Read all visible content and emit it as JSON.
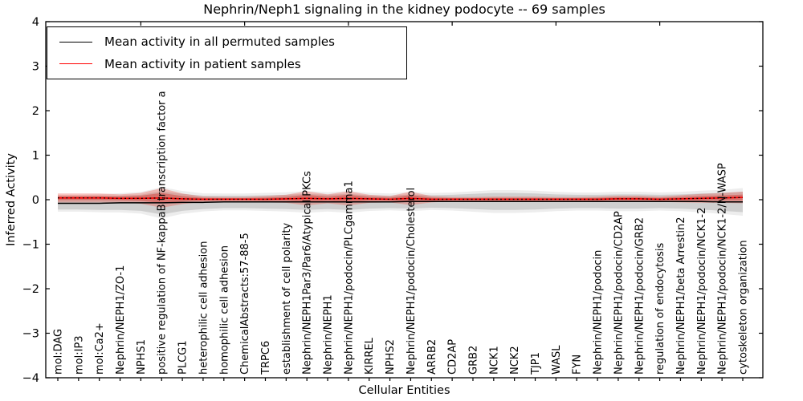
{
  "chart_data": {
    "type": "line",
    "title": "Nephrin/Neph1 signaling in the kidney podocyte -- 69 samples",
    "xlabel": "Cellular Entities",
    "ylabel": "Inferred Activity",
    "ylim": [
      -4,
      4
    ],
    "grid": false,
    "legend_position": "upper left",
    "yticks": [
      {
        "value": 4,
        "label": "4"
      },
      {
        "value": 3,
        "label": "3"
      },
      {
        "value": 2,
        "label": "2"
      },
      {
        "value": 1,
        "label": "1"
      },
      {
        "value": 0,
        "label": "0"
      },
      {
        "value": -1,
        "label": "−1"
      },
      {
        "value": -2,
        "label": "−2"
      },
      {
        "value": -3,
        "label": "−3"
      },
      {
        "value": -4,
        "label": "−4"
      }
    ],
    "categories": [
      "mol:DAG",
      "mol:IP3",
      "mol:Ca2+",
      "Nephrin/NEPH1/ZO-1",
      "NPHS1",
      "positive regulation of NF-kappaB transcription factor a",
      "PLCG1",
      "heterophilic cell adhesion",
      "homophilic cell adhesion",
      "ChemicalAbstracts:57-88-5",
      "TRPC6",
      "establishment of cell polarity",
      "Nephrin/NEPH1Par3/Par6/Atypical PKCs",
      "Nephrin/NEPH1",
      "Nephrin/NEPH1/podocin/PLCgamma1",
      "KIRREL",
      "NPHS2",
      "Nephrin/NEPH1/podocin/Cholesterol",
      "ARRB2",
      "CD2AP",
      "GRB2",
      "NCK1",
      "NCK2",
      "TJP1",
      "WASL",
      "FYN",
      "Nephrin/NEPH1/podocin",
      "Nephrin/NEPH1/podocin/CD2AP",
      "Nephrin/NEPH1/podocin/GRB2",
      "regulation of endocytosis",
      "Nephrin/NEPH1/beta Arrestin2",
      "Nephrin/NEPH1/podocin/NCK1-2",
      "Nephrin/NEPH1/podocin/NCK1-2/N-WASP",
      "cytoskeleton organization"
    ],
    "series": [
      {
        "name": "Mean activity in all permuted samples",
        "color": "#000000",
        "band_color": "rgba(128,128,128,0.28)",
        "band_color_soft": "rgba(128,128,128,0.14)",
        "values": [
          -0.08,
          -0.08,
          -0.08,
          -0.07,
          -0.07,
          -0.07,
          -0.06,
          -0.06,
          -0.05,
          -0.05,
          -0.05,
          -0.05,
          -0.05,
          -0.05,
          -0.05,
          -0.05,
          -0.05,
          -0.04,
          -0.04,
          -0.04,
          -0.04,
          -0.04,
          -0.04,
          -0.04,
          -0.04,
          -0.04,
          -0.04,
          -0.04,
          -0.04,
          -0.04,
          -0.04,
          -0.04,
          -0.05,
          -0.05
        ],
        "std": [
          0.14,
          0.14,
          0.15,
          0.16,
          0.18,
          0.26,
          0.19,
          0.15,
          0.14,
          0.14,
          0.15,
          0.16,
          0.18,
          0.16,
          0.18,
          0.15,
          0.14,
          0.16,
          0.14,
          0.15,
          0.17,
          0.19,
          0.19,
          0.18,
          0.16,
          0.15,
          0.15,
          0.16,
          0.16,
          0.15,
          0.16,
          0.18,
          0.2,
          0.23
        ]
      },
      {
        "name": "Mean activity in patient samples",
        "color": "#ff0000",
        "band_color": "rgba(232,70,60,0.32)",
        "band_color_core": "rgba(211,40,35,0.40)",
        "dotted_overlay_color": "#000000",
        "values": [
          0.04,
          0.04,
          0.04,
          0.03,
          0.03,
          0.04,
          0.02,
          0.01,
          0.01,
          0.01,
          0.01,
          0.02,
          0.03,
          0.02,
          0.03,
          0.02,
          0.01,
          0.03,
          0.01,
          0.01,
          0.01,
          0.01,
          0.01,
          0.01,
          0.01,
          0.01,
          0.01,
          0.02,
          0.02,
          0.01,
          0.02,
          0.03,
          0.04,
          0.05
        ],
        "std": [
          0.1,
          0.1,
          0.1,
          0.09,
          0.12,
          0.22,
          0.12,
          0.06,
          0.05,
          0.05,
          0.07,
          0.09,
          0.16,
          0.1,
          0.16,
          0.09,
          0.07,
          0.15,
          0.07,
          0.05,
          0.05,
          0.06,
          0.06,
          0.06,
          0.05,
          0.05,
          0.06,
          0.07,
          0.07,
          0.06,
          0.08,
          0.1,
          0.11,
          0.13
        ]
      }
    ],
    "legend": [
      {
        "label": "Mean activity in all permuted samples",
        "color": "#000000"
      },
      {
        "label": "Mean activity in patient samples",
        "color": "#ff0000"
      }
    ]
  }
}
